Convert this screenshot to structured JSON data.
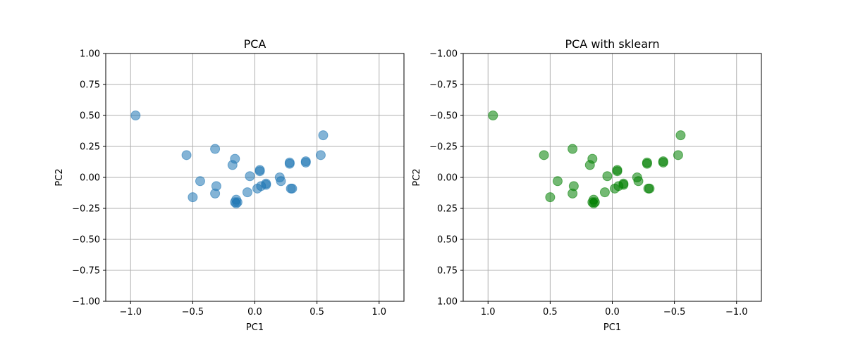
{
  "chart_data": [
    {
      "type": "scatter",
      "title": "PCA",
      "xlabel": "PC1",
      "ylabel": "PC2",
      "xlim": [
        -1.2,
        1.2
      ],
      "ylim": [
        -1.0,
        1.0
      ],
      "y_inverted": false,
      "x_inverted": false,
      "x_ticks": [
        -1.0,
        -0.5,
        0.0,
        0.5,
        1.0
      ],
      "x_tick_labels": [
        "−1.0",
        "−0.5",
        "0.0",
        "0.5",
        "1.0"
      ],
      "y_ticks": [
        -1.0,
        -0.75,
        -0.5,
        -0.25,
        0.0,
        0.25,
        0.5,
        0.75,
        1.0
      ],
      "y_tick_labels": [
        "−1.00",
        "−0.75",
        "−0.50",
        "−0.25",
        "0.00",
        "0.25",
        "0.50",
        "0.75",
        "1.00"
      ],
      "grid": true,
      "color": "#1f77b4",
      "alpha": 0.55,
      "points": [
        {
          "x": -0.96,
          "y": 0.5
        },
        {
          "x": -0.55,
          "y": 0.18
        },
        {
          "x": -0.32,
          "y": 0.23
        },
        {
          "x": -0.16,
          "y": 0.15
        },
        {
          "x": -0.18,
          "y": 0.1
        },
        {
          "x": -0.44,
          "y": -0.03
        },
        {
          "x": -0.31,
          "y": -0.07
        },
        {
          "x": -0.5,
          "y": -0.16
        },
        {
          "x": -0.32,
          "y": -0.13
        },
        {
          "x": -0.04,
          "y": 0.01
        },
        {
          "x": 0.04,
          "y": 0.06
        },
        {
          "x": 0.04,
          "y": 0.05
        },
        {
          "x": -0.06,
          "y": -0.12
        },
        {
          "x": 0.02,
          "y": -0.09
        },
        {
          "x": 0.05,
          "y": -0.07
        },
        {
          "x": 0.09,
          "y": -0.05
        },
        {
          "x": 0.09,
          "y": -0.06
        },
        {
          "x": -0.15,
          "y": -0.18
        },
        {
          "x": -0.16,
          "y": -0.2
        },
        {
          "x": -0.14,
          "y": -0.2
        },
        {
          "x": -0.15,
          "y": -0.21
        },
        {
          "x": 0.2,
          "y": 0.0
        },
        {
          "x": 0.21,
          "y": -0.03
        },
        {
          "x": 0.28,
          "y": 0.11
        },
        {
          "x": 0.28,
          "y": 0.12
        },
        {
          "x": 0.41,
          "y": 0.12
        },
        {
          "x": 0.41,
          "y": 0.13
        },
        {
          "x": 0.3,
          "y": -0.09
        },
        {
          "x": 0.29,
          "y": -0.09
        },
        {
          "x": 0.53,
          "y": 0.18
        },
        {
          "x": 0.55,
          "y": 0.34
        }
      ]
    },
    {
      "type": "scatter",
      "title": "PCA with sklearn",
      "xlabel": "PC1",
      "ylabel": "PC2",
      "xlim": [
        1.2,
        -1.2
      ],
      "ylim": [
        1.0,
        -1.0
      ],
      "y_inverted": true,
      "x_inverted": true,
      "x_ticks": [
        1.0,
        0.5,
        0.0,
        -0.5,
        -1.0
      ],
      "x_tick_labels": [
        "1.0",
        "0.5",
        "0.0",
        "−0.5",
        "−1.0"
      ],
      "y_ticks": [
        1.0,
        0.75,
        0.5,
        0.25,
        0.0,
        -0.25,
        -0.5,
        -0.75,
        -1.0
      ],
      "y_tick_labels": [
        "1.00",
        "0.75",
        "0.50",
        "0.25",
        "0.00",
        "−0.25",
        "−0.50",
        "−0.75",
        "−1.00"
      ],
      "grid": true,
      "color": "#008000",
      "alpha": 0.55,
      "points": [
        {
          "x": 0.96,
          "y": -0.5
        },
        {
          "x": 0.55,
          "y": -0.18
        },
        {
          "x": 0.32,
          "y": -0.23
        },
        {
          "x": 0.16,
          "y": -0.15
        },
        {
          "x": 0.18,
          "y": -0.1
        },
        {
          "x": 0.44,
          "y": 0.03
        },
        {
          "x": 0.31,
          "y": 0.07
        },
        {
          "x": 0.5,
          "y": 0.16
        },
        {
          "x": 0.32,
          "y": 0.13
        },
        {
          "x": 0.04,
          "y": -0.01
        },
        {
          "x": -0.04,
          "y": -0.06
        },
        {
          "x": -0.04,
          "y": -0.05
        },
        {
          "x": 0.06,
          "y": 0.12
        },
        {
          "x": -0.02,
          "y": 0.09
        },
        {
          "x": -0.05,
          "y": 0.07
        },
        {
          "x": -0.09,
          "y": 0.05
        },
        {
          "x": -0.09,
          "y": 0.06
        },
        {
          "x": 0.15,
          "y": 0.18
        },
        {
          "x": 0.16,
          "y": 0.2
        },
        {
          "x": 0.14,
          "y": 0.2
        },
        {
          "x": 0.15,
          "y": 0.21
        },
        {
          "x": -0.2,
          "y": 0.0
        },
        {
          "x": -0.21,
          "y": 0.03
        },
        {
          "x": -0.28,
          "y": -0.11
        },
        {
          "x": -0.28,
          "y": -0.12
        },
        {
          "x": -0.41,
          "y": -0.12
        },
        {
          "x": -0.41,
          "y": -0.13
        },
        {
          "x": -0.3,
          "y": 0.09
        },
        {
          "x": -0.29,
          "y": 0.09
        },
        {
          "x": -0.53,
          "y": -0.18
        },
        {
          "x": -0.55,
          "y": -0.34
        }
      ]
    }
  ]
}
